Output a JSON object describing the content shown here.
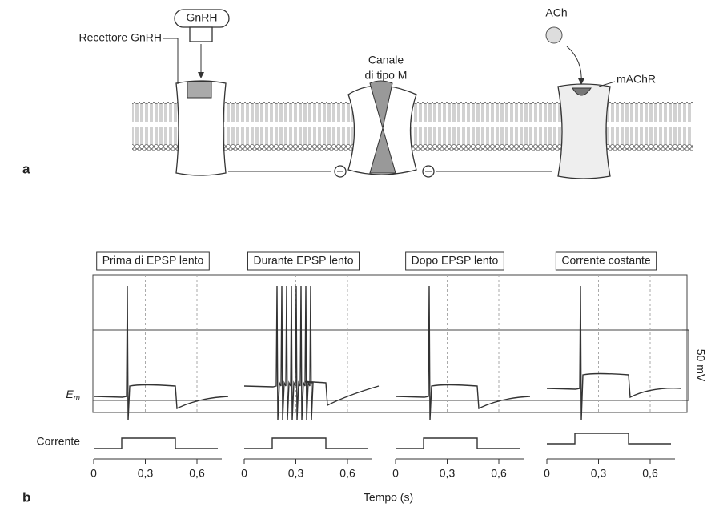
{
  "panel_a": {
    "label": "a",
    "ligand_gnrh": "GnRH",
    "receptor_gnrh": "Recettore GnRH",
    "channel_line1": "Canale",
    "channel_line2": "di tipo M",
    "ligand_ach": "ACh",
    "receptor_ach": "mAChR"
  },
  "panel_b": {
    "label": "b",
    "conditions": [
      "Prima di EPSP lento",
      "Durante EPSP lento",
      "Dopo EPSP lento",
      "Corrente costante"
    ],
    "em_symbol": "E",
    "em_subscript": "m",
    "current_label": "Corrente",
    "scale_label": "50 mV",
    "x_axis_label": "Tempo (s)",
    "xticks": [
      {
        "value": 0,
        "label": "0"
      },
      {
        "value": 0.3,
        "label": "0,3"
      },
      {
        "value": 0.6,
        "label": "0,6"
      }
    ]
  }
}
